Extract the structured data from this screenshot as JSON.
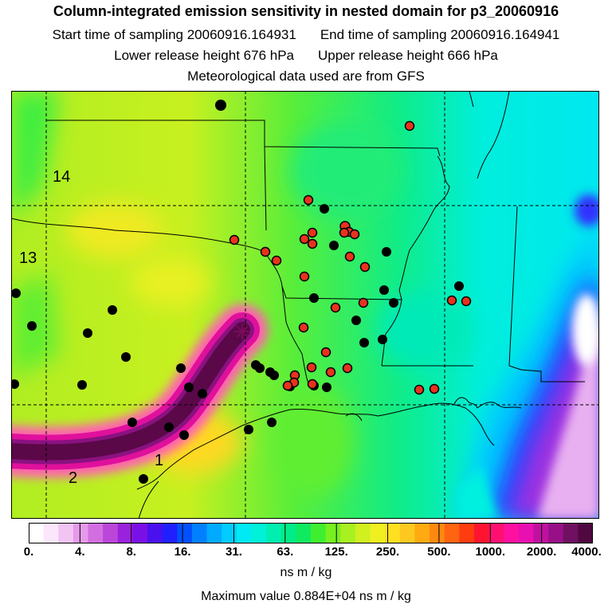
{
  "header": {
    "title": "Column-integrated emission sensitivity in nested domain for p3_20060916",
    "start": "Start time of sampling 20060916.164931",
    "end": "End time of sampling 20060916.164941",
    "lower": "Lower release height  676 hPa",
    "upper": "Upper release height  666 hPa",
    "met": "Meteorological data used are from GFS"
  },
  "map": {
    "labels": {
      "l14": "14",
      "l13": "13",
      "l2": "2",
      "l1": "1"
    },
    "release_marker": "star-icon"
  },
  "colorbar": {
    "ticks": [
      "0.",
      "4.",
      "8.",
      "16.",
      "31.",
      "63.",
      "125.",
      "250.",
      "500.",
      "1000.",
      "2000.",
      "4000."
    ],
    "colors": [
      "#ffffff",
      "#fbe6fb",
      "#f1c4f3",
      "#e59ae9",
      "#d36ee0",
      "#bb46d9",
      "#9b22dc",
      "#7a10e6",
      "#4a10ee",
      "#2020ff",
      "#0050ff",
      "#0080ff",
      "#00aaff",
      "#00ccff",
      "#00eaf5",
      "#00f0d8",
      "#00eeb0",
      "#00ec88",
      "#10ea60",
      "#40ee30",
      "#78f020",
      "#a8f020",
      "#d0f020",
      "#f0f020",
      "#ffe020",
      "#ffc820",
      "#ffaa10",
      "#ff8810",
      "#ff6410",
      "#ff3c10",
      "#ff1430",
      "#ff1070",
      "#ff10a0",
      "#e810b0",
      "#c010a0",
      "#981088",
      "#701060",
      "#500840"
    ],
    "units": "ns m / kg"
  },
  "footer": {
    "max": "Maximum value  0.884E+04 ns m / kg"
  }
}
